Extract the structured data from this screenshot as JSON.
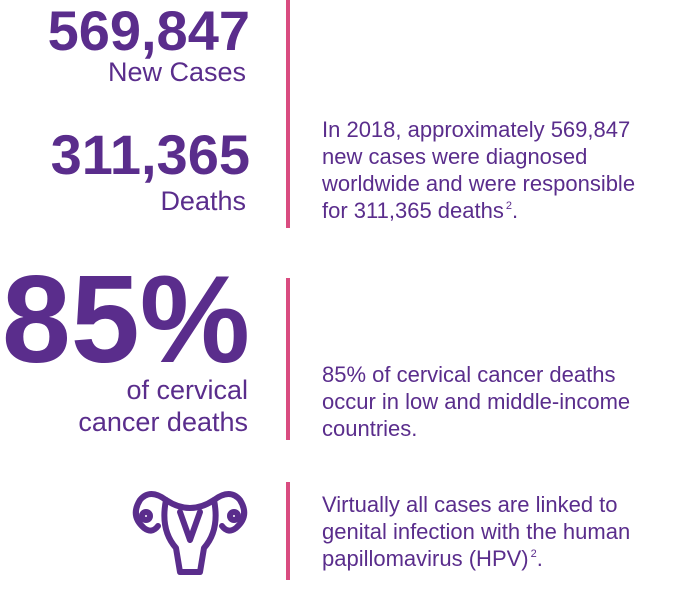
{
  "rows": [
    {
      "stats": [
        {
          "value": "569,847",
          "label": "New Cases"
        },
        {
          "value": "311,365",
          "label": "Deaths"
        }
      ],
      "text": {
        "lines": [
          "In 2018, approximately 569,847",
          "new cases were diagnosed",
          "worldwide and were responsible",
          "for 311,365 deaths"
        ],
        "sup": "2",
        "end": "."
      }
    },
    {
      "stat": "85%",
      "label_lines": [
        "of cervical",
        "cancer deaths"
      ],
      "text": {
        "lines": [
          "85% of cervical cancer deaths",
          "occur in low and middle-income",
          "countries."
        ]
      }
    },
    {
      "text": {
        "lines": [
          "Virtually all cases are linked to",
          "genital infection with the human",
          "papillomavirus (HPV)"
        ],
        "sup": "2",
        "end": "."
      }
    }
  ]
}
